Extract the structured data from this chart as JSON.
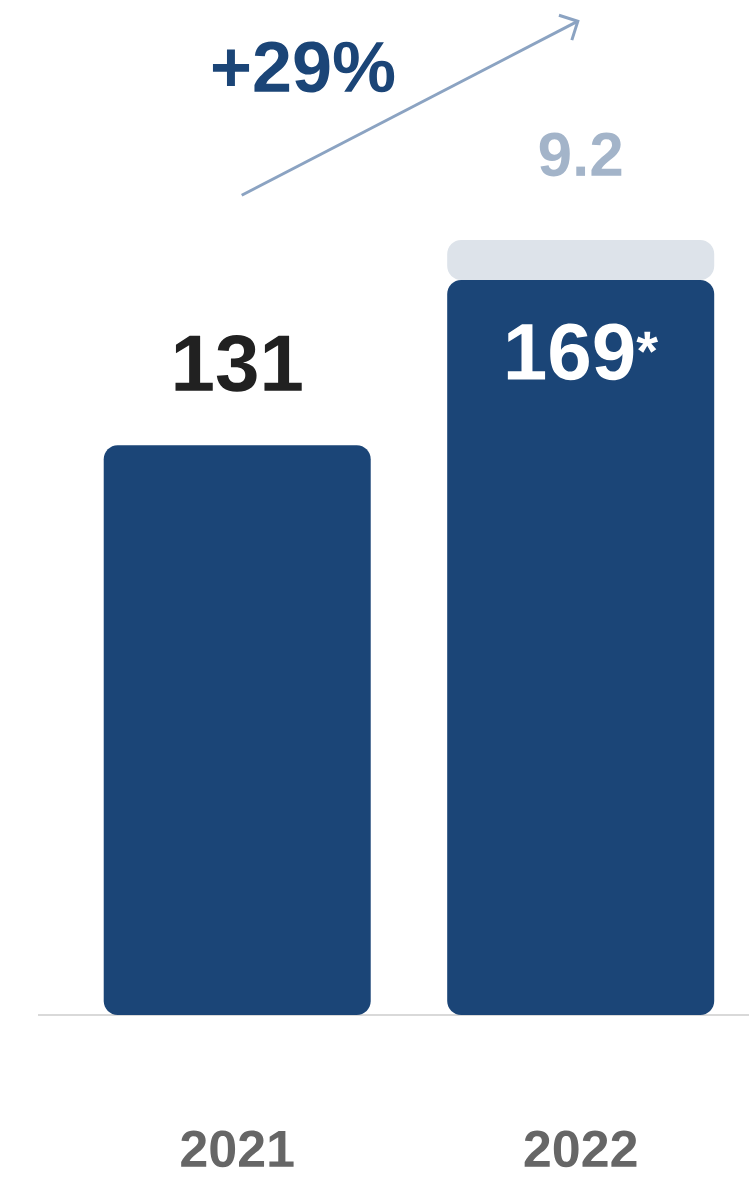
{
  "chart_data": {
    "type": "bar",
    "stacked": true,
    "categories": [
      "2021",
      "2022"
    ],
    "series": [
      {
        "color": "#1b4577",
        "values": [
          131,
          169
        ],
        "value_labels": [
          "131",
          "169$^{*}$"
        ]
      },
      {
        "color": "#dde3ea",
        "values": [
          null,
          9.2
        ],
        "value_labels": [
          null,
          "9.2"
        ]
      }
    ],
    "annotations": [
      "+29%"
    ]
  }
}
